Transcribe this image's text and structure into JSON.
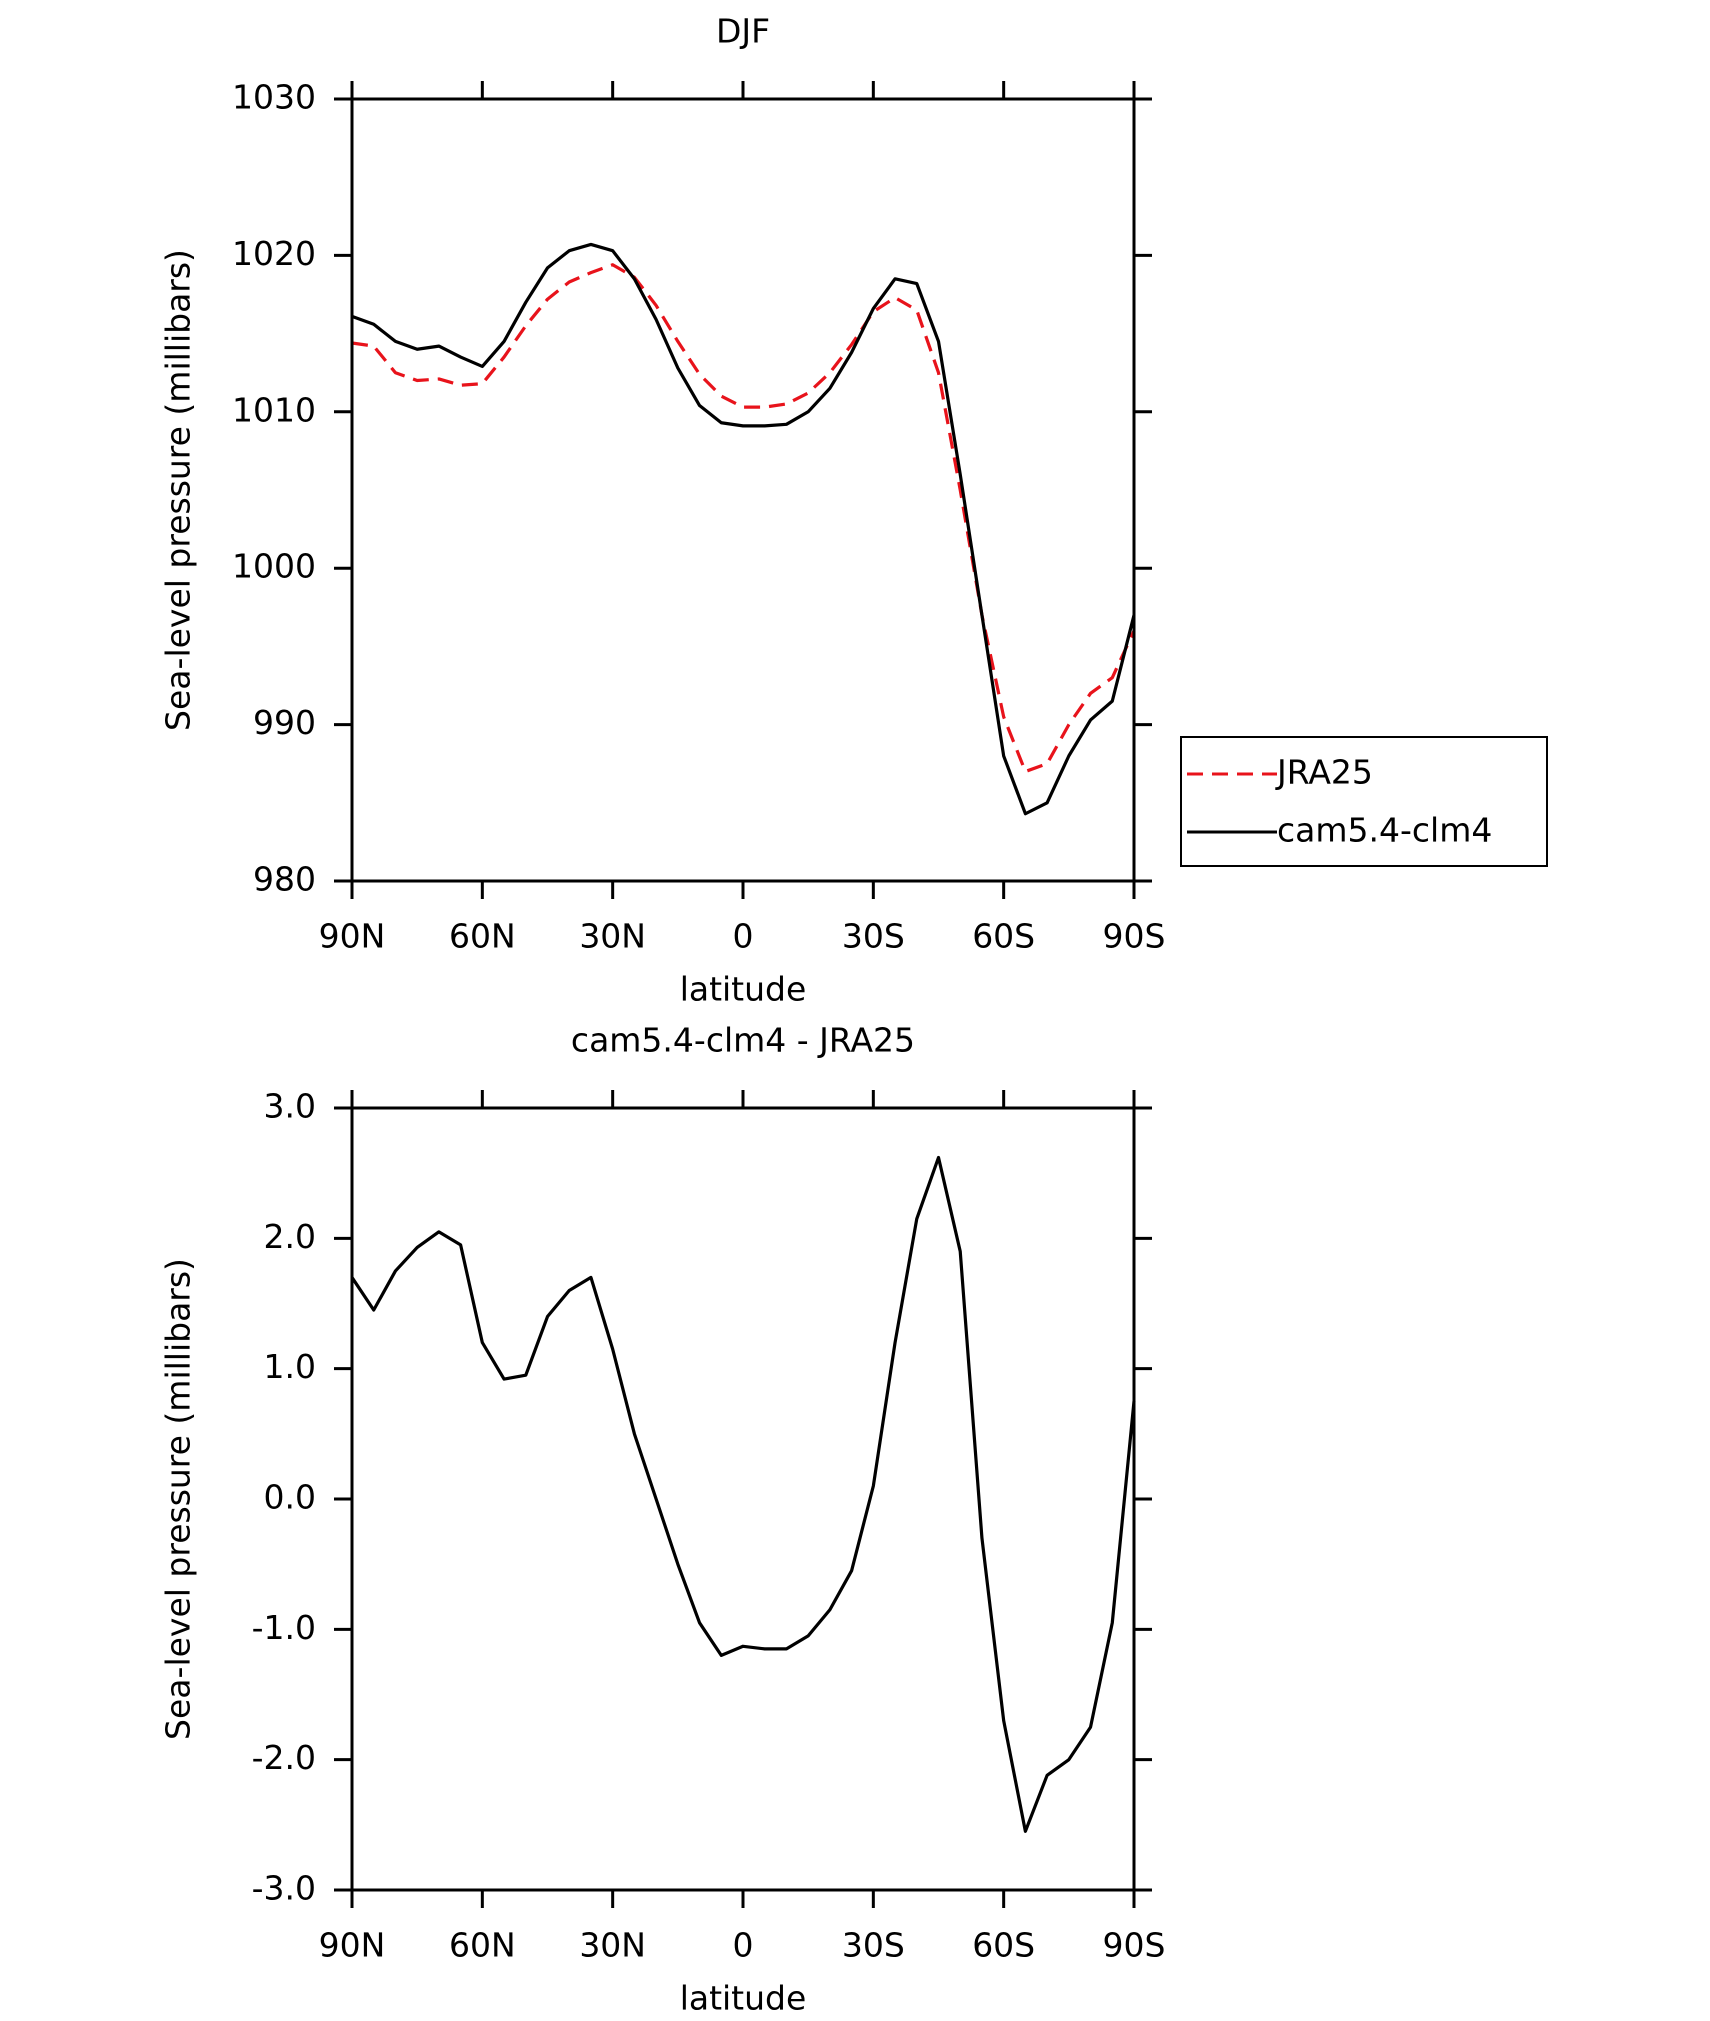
{
  "chart_data": [
    {
      "type": "line",
      "title": "DJF",
      "x_label": "latitude",
      "y_label": "Sea-level pressure (millibars)",
      "x": [
        90,
        85,
        80,
        75,
        70,
        65,
        60,
        55,
        50,
        45,
        40,
        35,
        30,
        25,
        20,
        15,
        10,
        5,
        0,
        -5,
        -10,
        -15,
        -20,
        -25,
        -30,
        -35,
        -40,
        -45,
        -50,
        -55,
        -60,
        -65,
        -70,
        -75,
        -80,
        -85,
        -90
      ],
      "series": [
        {
          "name": "JRA25",
          "color": "#e8131b",
          "dash": true,
          "values": [
            1014.4,
            1014.2,
            1012.5,
            1012.0,
            1012.1,
            1011.7,
            1011.8,
            1013.5,
            1015.5,
            1017.2,
            1018.3,
            1018.9,
            1019.4,
            1018.6,
            1016.8,
            1014.5,
            1012.4,
            1011.0,
            1010.3,
            1010.3,
            1010.5,
            1011.2,
            1012.5,
            1014.3,
            1016.4,
            1017.3,
            1016.5,
            1012.5,
            1005,
            997,
            990.5,
            987,
            987.5,
            990,
            992,
            993,
            996
          ]
        },
        {
          "name": "cam5.4-clm4",
          "color": "#000000",
          "dash": false,
          "values": [
            1016.1,
            1015.6,
            1014.5,
            1014.0,
            1014.2,
            1013.5,
            1012.9,
            1014.5,
            1017.0,
            1019.2,
            1020.3,
            1020.7,
            1020.3,
            1018.5,
            1015.9,
            1012.8,
            1010.4,
            1009.3,
            1009.1,
            1009.1,
            1009.2,
            1010.0,
            1011.5,
            1013.8,
            1016.6,
            1018.5,
            1018.2,
            1014.5,
            1006,
            997,
            988,
            984.3,
            985,
            988,
            990.3,
            991.5,
            997
          ]
        }
      ],
      "xlim": [
        90,
        -90
      ],
      "xticks": [
        {
          "value": 90,
          "label": "90N"
        },
        {
          "value": 60,
          "label": "60N"
        },
        {
          "value": 30,
          "label": "30N"
        },
        0,
        {
          "value": -30,
          "label": "30S"
        },
        {
          "value": -60,
          "label": "60S"
        },
        {
          "value": -90,
          "label": "90S"
        }
      ],
      "ylim": [
        980,
        1030
      ],
      "yticks": [
        980,
        990,
        1000,
        1010,
        1020,
        1030
      ],
      "legend": "right"
    },
    {
      "type": "line",
      "title": "cam5.4-clm4 - JRA25",
      "x_label": "latitude",
      "y_label": "Sea-level pressure (millibars)",
      "x": [
        90,
        85,
        80,
        75,
        70,
        65,
        60,
        55,
        50,
        45,
        40,
        35,
        30,
        25,
        20,
        15,
        10,
        5,
        0,
        -5,
        -10,
        -15,
        -20,
        -25,
        -30,
        -35,
        -40,
        -45,
        -50,
        -55,
        -60,
        -65,
        -70,
        -75,
        -80,
        -85,
        -90
      ],
      "series": [
        {
          "color": "#000000",
          "dash": false,
          "values": [
            1.7,
            1.45,
            1.75,
            1.93,
            2.05,
            1.95,
            1.2,
            0.92,
            0.95,
            1.4,
            1.6,
            1.7,
            1.15,
            0.5,
            0.0,
            -0.5,
            -0.95,
            -1.2,
            -1.13,
            -1.15,
            -1.15,
            -1.05,
            -0.85,
            -0.55,
            0.1,
            1.2,
            2.15,
            2.62,
            1.9,
            -0.3,
            -1.7,
            -2.55,
            -2.12,
            -2.0,
            -1.75,
            -0.95,
            0.75
          ]
        }
      ],
      "xlim": [
        90,
        -90
      ],
      "xticks": [
        {
          "value": 90,
          "label": "90N"
        },
        {
          "value": 60,
          "label": "60N"
        },
        {
          "value": 30,
          "label": "30N"
        },
        0,
        {
          "value": -30,
          "label": "30S"
        },
        {
          "value": -60,
          "label": "60S"
        },
        {
          "value": -90,
          "label": "90S"
        }
      ],
      "ylim": [
        -3,
        3
      ],
      "yticks": [
        {
          "value": -3,
          "label": "-3.0"
        },
        {
          "value": -2,
          "label": "-2.0"
        },
        {
          "value": -1,
          "label": "-1.0"
        },
        {
          "value": 0,
          "label": "0.0"
        },
        {
          "value": 1,
          "label": "1.0"
        },
        {
          "value": 2,
          "label": "2.0"
        },
        {
          "value": 3,
          "label": "3.0"
        }
      ]
    }
  ]
}
